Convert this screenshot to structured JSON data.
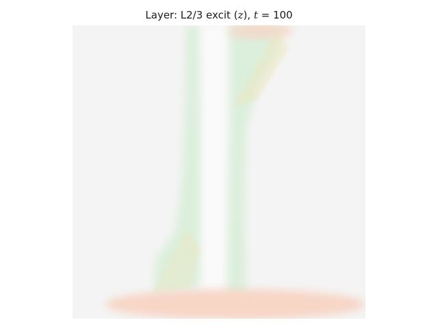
{
  "chart_data": {
    "type": "heatmap",
    "title": {
      "layer_label": "Layer: L2/3 excit (",
      "var": "z",
      "mid": "), ",
      "time_var": "t",
      "equals": " = ",
      "time_value": "100"
    },
    "axes_visible": false,
    "grid": false,
    "legend": "none",
    "colors": {
      "background_value": "#f4f4f4",
      "green_tint": "#dcefdc",
      "orange_tint": "#f7d6c6",
      "yellow_tint": "#efe3b8",
      "white_gap": "#fafafa"
    }
  }
}
